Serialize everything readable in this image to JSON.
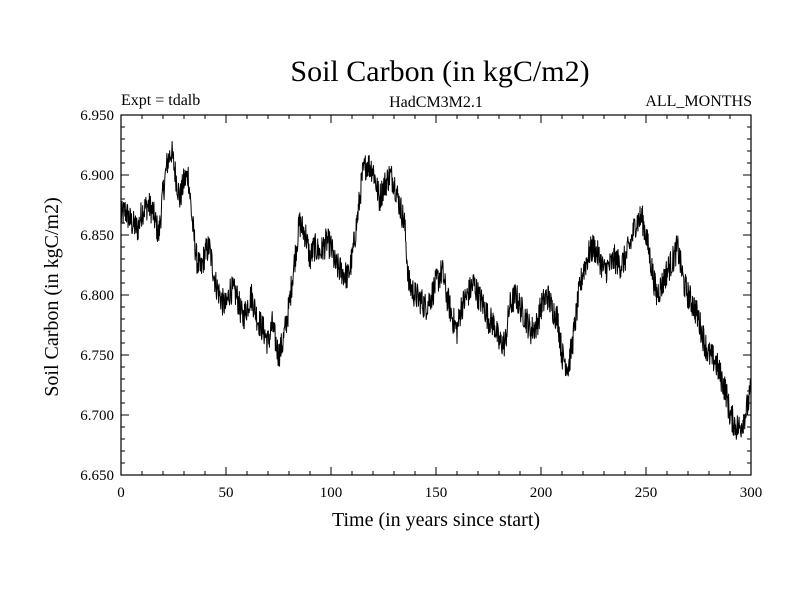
{
  "chart_data": {
    "type": "line",
    "title": "Soil Carbon (in kgC/m2)",
    "subtitle_left": "Expt = tdalb",
    "subtitle_center": "HadCM3M2.1",
    "subtitle_right": "ALL_MONTHS",
    "xlabel": "Time (in years since start)",
    "ylabel": "Soil Carbon (in kgC/m2)",
    "xlim": [
      0,
      300
    ],
    "ylim": [
      6.65,
      6.95
    ],
    "x_major_ticks": [
      0,
      50,
      100,
      150,
      200,
      250,
      300
    ],
    "x_minor_step": 10,
    "y_major_ticks": [
      6.65,
      6.7,
      6.75,
      6.8,
      6.85,
      6.9,
      6.95
    ],
    "y_tick_labels": [
      "6.650",
      "6.700",
      "6.750",
      "6.800",
      "6.850",
      "6.900",
      "6.950"
    ],
    "y_minor_step": 0.01,
    "grid": false,
    "series": [
      {
        "name": "Soil Carbon",
        "color": "#000000",
        "noise_amplitude": 0.012,
        "x": [
          0,
          2,
          5,
          8,
          10,
          13,
          15,
          18,
          20,
          22,
          24,
          26,
          28,
          30,
          32,
          34,
          36,
          38,
          40,
          42,
          45,
          48,
          50,
          52,
          55,
          58,
          60,
          62,
          65,
          68,
          70,
          72,
          75,
          77,
          80,
          82,
          85,
          88,
          90,
          92,
          95,
          98,
          100,
          102,
          105,
          108,
          110,
          113,
          115,
          117,
          120,
          123,
          125,
          128,
          130,
          132,
          135,
          137,
          140,
          143,
          145,
          148,
          150,
          153,
          155,
          158,
          160,
          162,
          165,
          168,
          170,
          173,
          175,
          178,
          180,
          183,
          185,
          188,
          190,
          193,
          195,
          198,
          200,
          203,
          205,
          208,
          210,
          213,
          215,
          218,
          220,
          223,
          225,
          228,
          230,
          233,
          235,
          238,
          240,
          243,
          245,
          248,
          250,
          253,
          255,
          258,
          260,
          263,
          265,
          268,
          270,
          273,
          275,
          278,
          280,
          283,
          285,
          288,
          290,
          293,
          295,
          298,
          300
        ],
        "y": [
          6.865,
          6.87,
          6.86,
          6.855,
          6.87,
          6.875,
          6.87,
          6.85,
          6.885,
          6.91,
          6.92,
          6.9,
          6.88,
          6.895,
          6.9,
          6.86,
          6.83,
          6.82,
          6.835,
          6.84,
          6.81,
          6.795,
          6.79,
          6.805,
          6.8,
          6.78,
          6.79,
          6.8,
          6.78,
          6.77,
          6.76,
          6.775,
          6.75,
          6.76,
          6.79,
          6.82,
          6.86,
          6.85,
          6.83,
          6.84,
          6.835,
          6.845,
          6.84,
          6.825,
          6.82,
          6.815,
          6.83,
          6.87,
          6.9,
          6.91,
          6.905,
          6.88,
          6.89,
          6.9,
          6.895,
          6.88,
          6.86,
          6.81,
          6.8,
          6.795,
          6.79,
          6.8,
          6.81,
          6.82,
          6.8,
          6.78,
          6.77,
          6.79,
          6.8,
          6.81,
          6.8,
          6.79,
          6.78,
          6.775,
          6.76,
          6.76,
          6.79,
          6.8,
          6.79,
          6.78,
          6.77,
          6.775,
          6.79,
          6.8,
          6.79,
          6.78,
          6.75,
          6.74,
          6.76,
          6.8,
          6.82,
          6.835,
          6.84,
          6.83,
          6.82,
          6.825,
          6.83,
          6.825,
          6.83,
          6.845,
          6.86,
          6.865,
          6.85,
          6.82,
          6.8,
          6.81,
          6.82,
          6.83,
          6.84,
          6.81,
          6.8,
          6.79,
          6.78,
          6.76,
          6.75,
          6.745,
          6.735,
          6.72,
          6.7,
          6.69,
          6.69,
          6.705,
          6.72
        ]
      }
    ]
  }
}
